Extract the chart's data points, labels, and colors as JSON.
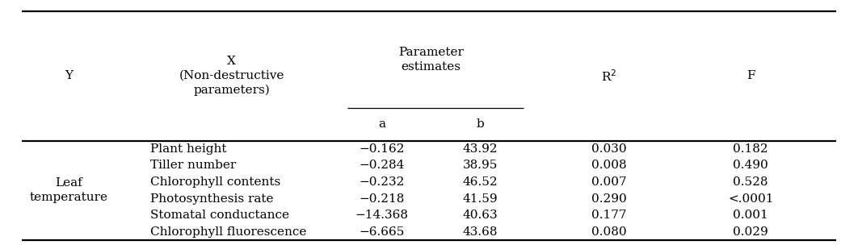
{
  "y_label": "Leaf\ntemperature",
  "col_Y": "Y",
  "col_X": "X\n(Non-destructive\nparameters)",
  "col_param": "Parameter\nestimates",
  "col_a": "a",
  "col_b": "b",
  "col_r2": "R$^2$",
  "col_F": "F",
  "rows": [
    {
      "x": "Plant height",
      "a": "−0.162",
      "b": "43.92",
      "r2": "0.030",
      "f": "0.182"
    },
    {
      "x": "Tiller number",
      "a": "−0.284",
      "b": "38.95",
      "r2": "0.008",
      "f": "0.490"
    },
    {
      "x": "Chlorophyll contents",
      "a": "−0.232",
      "b": "46.52",
      "r2": "0.007",
      "f": "0.528"
    },
    {
      "x": "Photosynthesis rate",
      "a": "−0.218",
      "b": "41.59",
      "r2": "0.290",
      "f": "<.0001"
    },
    {
      "x": "Stomatal conductance",
      "a": "−14.368",
      "b": "40.63",
      "r2": "0.177",
      "f": "0.001"
    },
    {
      "x": "Chlorophyll fluorescence",
      "a": "−6.665",
      "b": "43.68",
      "r2": "0.080",
      "f": "0.029"
    }
  ],
  "bg_color": "#ffffff",
  "text_color": "#000000",
  "line_color": "#000000",
  "font_size": 11.0,
  "fig_width": 10.62,
  "fig_height": 3.09,
  "dpi": 100
}
